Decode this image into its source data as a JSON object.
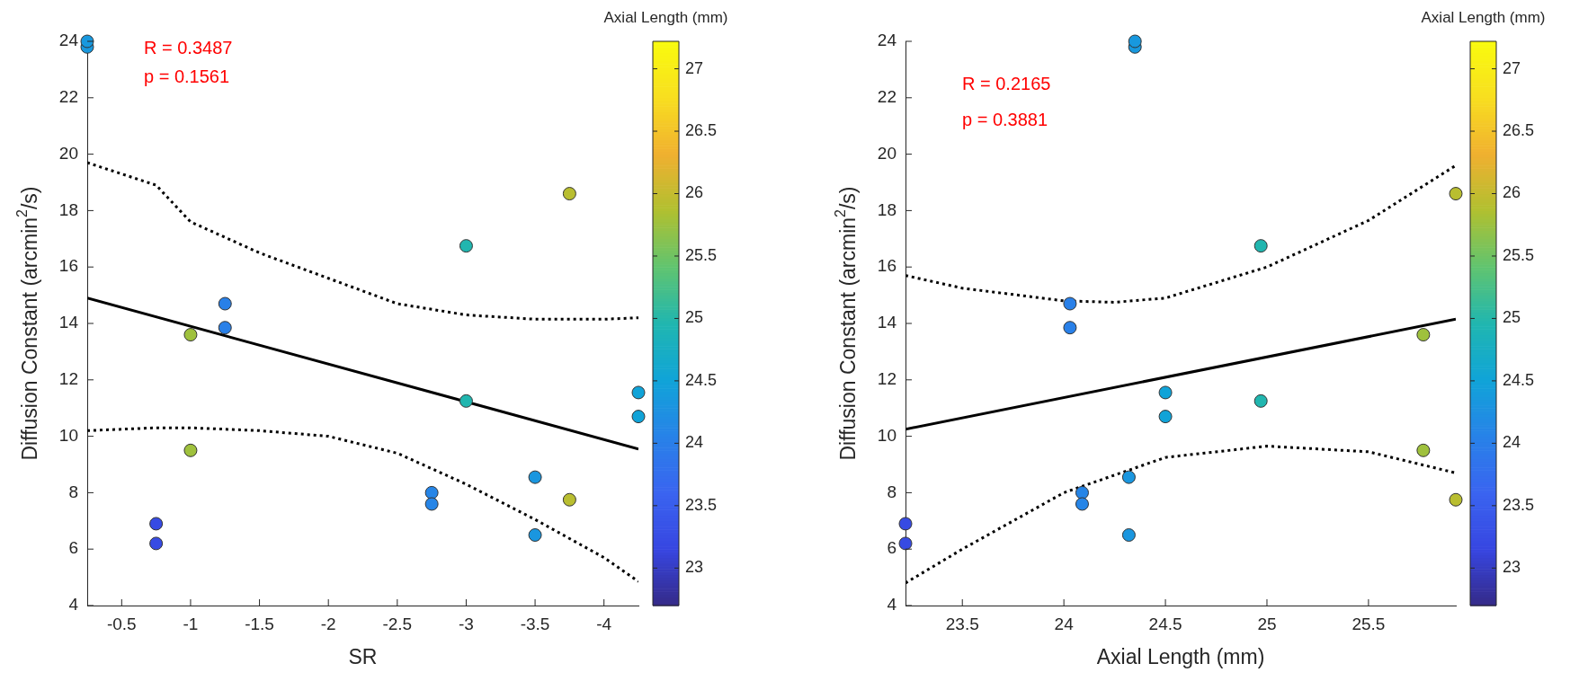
{
  "chart_data": [
    {
      "type": "scatter",
      "xlabel": "SR",
      "ylabel": "Diffusion Constant (arcmin$^{2}$/s)",
      "clabel": "Axial Length (mm)",
      "annotations": [
        "R = 0.3487",
        "p = 0.1561"
      ],
      "xlim": [
        -0.25,
        -4.25
      ],
      "xticks": [
        -0.5,
        -1,
        -1.5,
        -2,
        -2.5,
        -3,
        -3.5,
        -4
      ],
      "ylim": [
        4,
        24
      ],
      "yticks": [
        4,
        6,
        8,
        10,
        12,
        14,
        16,
        18,
        20,
        22,
        24
      ],
      "clim": [
        22.7,
        27.22
      ],
      "cticks": [
        23,
        23.5,
        24,
        24.5,
        25,
        25.5,
        26,
        26.5,
        27
      ],
      "grid": false,
      "legend": false,
      "series": [
        {
          "type": "scatter",
          "marker": "circle",
          "colors": [
            "#1898de",
            "#1898de",
            "#2980e8",
            "#2980e8",
            "#9fc13d",
            "#9fc13d",
            "#374be3",
            "#374be3",
            "#2685e7",
            "#2685e7",
            "#21b6af",
            "#21b6af",
            "#b9be30",
            "#b9be30",
            "#1a96df",
            "#1a96df",
            "#10a3d8",
            "#10a3d8"
          ],
          "x": [
            -0.25,
            -0.25,
            -1.25,
            -1.25,
            -1,
            -1,
            -0.75,
            -0.75,
            -2.75,
            -2.75,
            -3,
            -3,
            -3.75,
            -3.75,
            -3.5,
            -3.5,
            -4.25,
            -4.25
          ],
          "values": [
            23.8,
            24.0,
            14.7,
            13.85,
            13.6,
            9.5,
            6.9,
            6.2,
            8.0,
            7.6,
            16.75,
            11.25,
            18.6,
            7.75,
            8.55,
            6.5,
            11.55,
            10.7
          ]
        },
        {
          "type": "line",
          "marker": "none",
          "line_style": "solid",
          "color": "#000000",
          "x": [
            -0.25,
            -4.25
          ],
          "values": [
            14.9,
            9.55
          ]
        },
        {
          "type": "line",
          "marker": "none",
          "line_style": "dotted",
          "color": "#000000",
          "x": [
            -0.25,
            -0.75,
            -1,
            -1.5,
            -2,
            -2.5,
            -3,
            -3.5,
            -4,
            -4.25
          ],
          "values": [
            19.7,
            18.9,
            17.6,
            16.5,
            15.6,
            14.7,
            14.3,
            14.15,
            14.15,
            14.2
          ]
        },
        {
          "type": "line",
          "marker": "none",
          "line_style": "dotted",
          "color": "#000000",
          "x": [
            -0.25,
            -0.75,
            -1,
            -1.5,
            -2,
            -2.5,
            -3,
            -3.5,
            -4,
            -4.25
          ],
          "values": [
            10.2,
            10.3,
            10.3,
            10.2,
            10.0,
            9.4,
            8.3,
            7.05,
            5.7,
            4.85
          ]
        }
      ]
    },
    {
      "type": "scatter",
      "xlabel": "Axial Length (mm)",
      "ylabel": "Diffusion Constant (arcmin$^{2}$/s)",
      "clabel": "Axial Length (mm)",
      "annotations": [
        "R = 0.2165",
        "p = 0.3881"
      ],
      "xlim": [
        23.22,
        25.93
      ],
      "xticks": [
        23.5,
        24,
        24.5,
        25,
        25.5
      ],
      "ylim": [
        4,
        24
      ],
      "yticks": [
        4,
        6,
        8,
        10,
        12,
        14,
        16,
        18,
        20,
        22,
        24
      ],
      "clim": [
        22.7,
        27.22
      ],
      "cticks": [
        23,
        23.5,
        24,
        24.5,
        25,
        25.5,
        26,
        26.5,
        27
      ],
      "grid": false,
      "legend": false,
      "series": [
        {
          "type": "scatter",
          "marker": "circle",
          "colors": [
            "#1898de",
            "#1898de",
            "#2980e8",
            "#2980e8",
            "#9fc13d",
            "#9fc13d",
            "#374be3",
            "#374be3",
            "#2685e7",
            "#2685e7",
            "#21b6af",
            "#21b6af",
            "#b9be30",
            "#b9be30",
            "#1a96df",
            "#1a96df",
            "#10a3d8",
            "#10a3d8"
          ],
          "x": [
            24.35,
            24.35,
            24.03,
            24.03,
            25.77,
            25.77,
            23.22,
            23.22,
            24.09,
            24.09,
            24.97,
            24.97,
            25.93,
            25.93,
            24.32,
            24.32,
            24.5,
            24.5
          ],
          "values": [
            23.8,
            24.0,
            14.7,
            13.85,
            13.6,
            9.5,
            6.9,
            6.2,
            8.0,
            7.6,
            16.75,
            11.25,
            18.6,
            7.75,
            8.55,
            6.5,
            11.55,
            10.7
          ]
        },
        {
          "type": "line",
          "marker": "none",
          "line_style": "solid",
          "color": "#000000",
          "x": [
            23.22,
            25.93
          ],
          "values": [
            10.25,
            14.15
          ]
        },
        {
          "type": "line",
          "marker": "none",
          "line_style": "dotted",
          "color": "#000000",
          "x": [
            23.22,
            23.5,
            24,
            24.25,
            24.5,
            25,
            25.5,
            25.93
          ],
          "values": [
            15.7,
            15.25,
            14.8,
            14.75,
            14.9,
            16.0,
            17.65,
            19.6
          ]
        },
        {
          "type": "line",
          "marker": "none",
          "line_style": "dotted",
          "color": "#000000",
          "x": [
            23.22,
            23.5,
            24,
            24.5,
            25,
            25.5,
            25.93
          ],
          "values": [
            4.8,
            6.0,
            8.0,
            9.25,
            9.65,
            9.45,
            8.7
          ]
        }
      ]
    }
  ]
}
